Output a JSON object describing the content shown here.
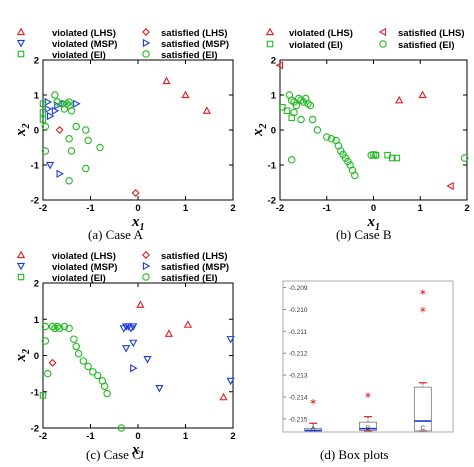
{
  "colors": {
    "lhs": "#e02020",
    "msp": "#1c3cd8",
    "ei": "#22bb22"
  },
  "legend": {
    "violated_lhs": "violated (LHS)",
    "violated_msp": "violated (MSP)",
    "violated_ei": "violated (EI)",
    "satisfied_lhs": "satisfied (LHS)",
    "satisfied_msp": "satisfied (MSP)",
    "satisfied_ei": "satisfied (EI)"
  },
  "chart_data": [
    {
      "type": "scatter",
      "caption": "(a)  Case A",
      "xlabel": "x1",
      "ylabel": "x2",
      "xlim": [
        -2,
        2
      ],
      "ylim": [
        -2,
        2
      ],
      "xticks": [
        "-2",
        "-1",
        "0",
        "1",
        "2"
      ],
      "yticks": [
        "-2",
        "-1",
        "0",
        "1",
        "2"
      ],
      "series": [
        {
          "name": "violated (LHS)",
          "marker": "triangle-up",
          "color": "lhs",
          "points": [
            [
              0.6,
              1.4
            ],
            [
              1.0,
              1.0
            ],
            [
              1.45,
              0.55
            ]
          ]
        },
        {
          "name": "satisfied (LHS)",
          "marker": "diamond",
          "color": "lhs",
          "points": [
            [
              -1.65,
              0.0
            ],
            [
              -0.05,
              -1.8
            ]
          ]
        },
        {
          "name": "violated (MSP)",
          "marker": "triangle-down",
          "color": "msp",
          "points": [
            [
              -1.85,
              -1.0
            ]
          ]
        },
        {
          "name": "satisfied (MSP)",
          "marker": "triangle-right",
          "color": "msp",
          "points": [
            [
              -1.9,
              0.8
            ],
            [
              -1.9,
              0.6
            ],
            [
              -1.85,
              0.4
            ],
            [
              -1.7,
              0.7
            ],
            [
              -1.75,
              0.55
            ],
            [
              -1.55,
              0.75
            ],
            [
              -1.3,
              0.75
            ],
            [
              -1.65,
              -1.25
            ]
          ]
        },
        {
          "name": "violated (EI)",
          "marker": "square",
          "color": "ei",
          "points": [
            [
              -2.0,
              0.75
            ],
            [
              -2.0,
              0.5
            ],
            [
              -2.0,
              0.3
            ]
          ]
        },
        {
          "name": "satisfied (EI)",
          "marker": "circle",
          "color": "ei",
          "points": [
            [
              -1.75,
              1.0
            ],
            [
              -1.7,
              0.8
            ],
            [
              -1.6,
              0.75
            ],
            [
              -1.5,
              0.75
            ],
            [
              -1.45,
              0.7
            ],
            [
              -1.45,
              0.8
            ],
            [
              -1.55,
              0.6
            ],
            [
              -1.4,
              0.55
            ],
            [
              -1.95,
              0.1
            ],
            [
              -1.3,
              0.1
            ],
            [
              -1.1,
              0.0
            ],
            [
              -1.45,
              -0.25
            ],
            [
              -1.05,
              -0.3
            ],
            [
              -0.8,
              -0.5
            ],
            [
              -1.4,
              -0.6
            ],
            [
              -1.95,
              -0.6
            ],
            [
              -1.45,
              -1.45
            ],
            [
              -1.1,
              -1.1
            ]
          ]
        }
      ]
    },
    {
      "type": "scatter",
      "caption": "(b) Case B",
      "xlabel": "x1",
      "ylabel": "x2",
      "xlim": [
        -2,
        2
      ],
      "ylim": [
        -2,
        2
      ],
      "xticks": [
        "-2",
        "-1",
        "0",
        "1",
        "2"
      ],
      "yticks": [
        "-2",
        "-1",
        "0",
        "1",
        "2"
      ],
      "series": [
        {
          "name": "violated (LHS)",
          "marker": "triangle-up",
          "color": "lhs",
          "points": [
            [
              0.55,
              0.85
            ],
            [
              1.05,
              1.0
            ]
          ]
        },
        {
          "name": "satisfied (LHS)",
          "marker": "triangle-left",
          "color": "lhs",
          "points": [
            [
              -2.0,
              1.85
            ],
            [
              1.65,
              -1.6
            ]
          ]
        },
        {
          "name": "violated (EI)",
          "marker": "square",
          "color": "ei",
          "points": [
            [
              -1.95,
              0.65
            ],
            [
              -1.85,
              0.55
            ],
            [
              -1.75,
              0.35
            ],
            [
              0.0,
              -0.7
            ],
            [
              0.05,
              -0.72
            ],
            [
              0.3,
              -0.72
            ],
            [
              0.4,
              -0.8
            ],
            [
              0.5,
              -0.8
            ]
          ]
        },
        {
          "name": "satisfied (EI)",
          "marker": "circle",
          "color": "ei",
          "points": [
            [
              -1.8,
              1.0
            ],
            [
              -1.75,
              0.85
            ],
            [
              -1.7,
              0.8
            ],
            [
              -1.65,
              0.7
            ],
            [
              -1.6,
              0.9
            ],
            [
              -1.55,
              0.85
            ],
            [
              -1.5,
              0.8
            ],
            [
              -1.45,
              0.9
            ],
            [
              -1.4,
              0.75
            ],
            [
              -1.35,
              0.7
            ],
            [
              -1.7,
              0.5
            ],
            [
              -1.55,
              0.3
            ],
            [
              -1.3,
              0.3
            ],
            [
              -1.2,
              0.0
            ],
            [
              -1.0,
              -0.2
            ],
            [
              -0.9,
              -0.25
            ],
            [
              -0.8,
              -0.3
            ],
            [
              -0.75,
              -0.45
            ],
            [
              -0.7,
              -0.6
            ],
            [
              -0.65,
              -0.7
            ],
            [
              -0.6,
              -0.8
            ],
            [
              -0.55,
              -0.9
            ],
            [
              -0.5,
              -1.0
            ],
            [
              -0.45,
              -1.15
            ],
            [
              -0.4,
              -1.3
            ],
            [
              -1.75,
              -0.85
            ],
            [
              -0.05,
              -0.72
            ],
            [
              0.05,
              -0.72
            ],
            [
              1.95,
              -0.8
            ]
          ]
        }
      ]
    },
    {
      "type": "scatter",
      "caption": "(c)  Case C",
      "xlabel": "x1",
      "ylabel": "x2",
      "xlim": [
        -2,
        2
      ],
      "ylim": [
        -2,
        2
      ],
      "xticks": [
        "-2",
        "-1",
        "0",
        "1",
        "2"
      ],
      "yticks": [
        "-2",
        "-1",
        "0",
        "1",
        "2"
      ],
      "series": [
        {
          "name": "violated (LHS)",
          "marker": "triangle-up",
          "color": "lhs",
          "points": [
            [
              0.05,
              1.4
            ],
            [
              0.65,
              0.6
            ],
            [
              1.05,
              0.85
            ],
            [
              1.8,
              -1.15
            ]
          ]
        },
        {
          "name": "satisfied (LHS)",
          "marker": "diamond",
          "color": "lhs",
          "points": [
            [
              -1.8,
              -0.2
            ]
          ]
        },
        {
          "name": "violated (MSP)",
          "marker": "triangle-down",
          "color": "msp",
          "points": [
            [
              -0.25,
              0.8
            ],
            [
              -0.2,
              0.8
            ],
            [
              -0.15,
              0.75
            ],
            [
              -0.1,
              0.8
            ],
            [
              -0.3,
              0.75
            ],
            [
              -0.25,
              0.2
            ],
            [
              -0.1,
              0.35
            ],
            [
              0.2,
              -0.1
            ],
            [
              0.45,
              -0.9
            ],
            [
              1.95,
              0.45
            ],
            [
              1.95,
              -0.7
            ]
          ]
        },
        {
          "name": "satisfied (MSP)",
          "marker": "triangle-right",
          "color": "msp",
          "points": [
            [
              -0.1,
              -0.35
            ]
          ]
        },
        {
          "name": "violated (EI)",
          "marker": "square",
          "color": "ei",
          "points": [
            [
              -2.0,
              -1.1
            ]
          ]
        },
        {
          "name": "satisfied (EI)",
          "marker": "circle",
          "color": "ei",
          "points": [
            [
              -1.8,
              0.8
            ],
            [
              -1.75,
              0.75
            ],
            [
              -1.7,
              0.8
            ],
            [
              -1.65,
              0.75
            ],
            [
              -1.55,
              0.8
            ],
            [
              -1.45,
              0.75
            ],
            [
              -1.35,
              0.45
            ],
            [
              -1.3,
              0.25
            ],
            [
              -1.25,
              0.05
            ],
            [
              -1.15,
              -0.15
            ],
            [
              -1.05,
              -0.3
            ],
            [
              -0.95,
              -0.45
            ],
            [
              -0.85,
              -0.55
            ],
            [
              -0.75,
              -0.7
            ],
            [
              -0.7,
              -0.85
            ],
            [
              -0.65,
              -1.05
            ],
            [
              -1.95,
              0.8
            ],
            [
              -1.95,
              0.4
            ],
            [
              -1.9,
              -0.5
            ],
            [
              -0.35,
              -2.0
            ]
          ]
        }
      ]
    },
    {
      "type": "box",
      "caption": "(d) Box plots",
      "categories": [
        "A",
        "B",
        "C"
      ],
      "ylim": [
        -0.2156,
        -0.2087
      ],
      "yticks": [
        "-0.209",
        "-0.210",
        "-0.211",
        "-0.212",
        "-0.213",
        "-0.214",
        "-0.215"
      ],
      "boxes": [
        {
          "name": "A",
          "q1": -0.21555,
          "median": -0.21553,
          "q3": -0.21543,
          "whisker_low": -0.21555,
          "whisker_high": -0.2152,
          "outliers": [
            -0.2142
          ]
        },
        {
          "name": "B",
          "q1": -0.21553,
          "median": -0.21545,
          "q3": -0.21515,
          "whisker_low": -0.21555,
          "whisker_high": -0.2149,
          "outliers": [
            -0.2139
          ]
        },
        {
          "name": "C",
          "q1": -0.21555,
          "median": -0.2151,
          "q3": -0.21355,
          "whisker_low": -0.21555,
          "whisker_high": -0.21335,
          "outliers": [
            -0.2092,
            -0.21
          ]
        }
      ]
    }
  ]
}
